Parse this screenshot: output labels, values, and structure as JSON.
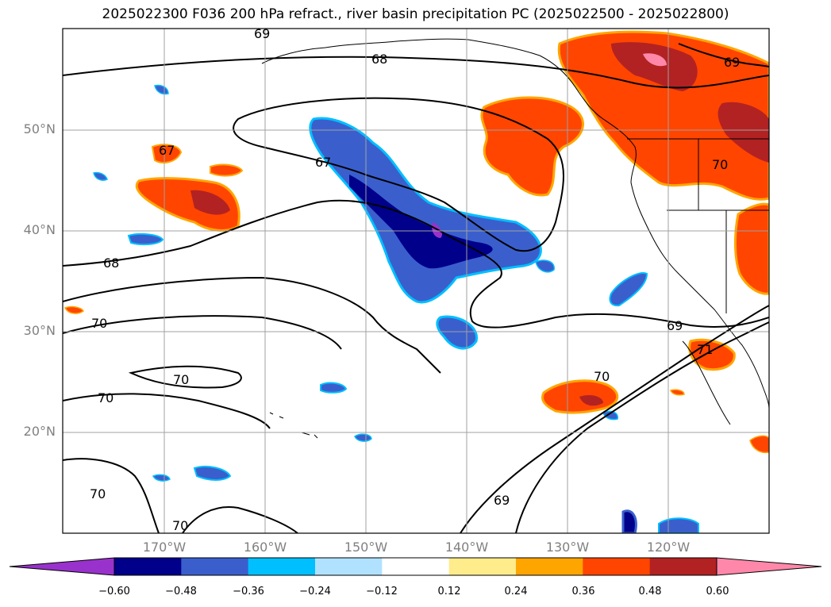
{
  "title": "2025022300 F036 200 hPa refract., river basin precipitation PC (2025022500 - 2025022800)",
  "lat_labels": [
    "50°N",
    "40°N",
    "30°N",
    "20°N"
  ],
  "lon_labels": [
    "170°W",
    "160°W",
    "150°W",
    "140°W",
    "130°W",
    "120°W"
  ],
  "contour_labels": [
    "69",
    "68",
    "69",
    "67",
    "67",
    "68",
    "70",
    "70",
    "70",
    "70",
    "70",
    "69",
    "70",
    "71",
    "69",
    "70"
  ],
  "colorbar": {
    "ticks": [
      "−0.60",
      "−0.48",
      "−0.36",
      "−0.24",
      "−0.12",
      "0.12",
      "0.24",
      "0.36",
      "0.48",
      "0.60"
    ],
    "colors": [
      "#9932cc",
      "#00008b",
      "#3a5fcd",
      "#00bfff",
      "#b0e2ff",
      "#ffffff",
      "#ffec8b",
      "#ffa500",
      "#ff4500",
      "#b22222",
      "#ff88aa"
    ]
  }
}
